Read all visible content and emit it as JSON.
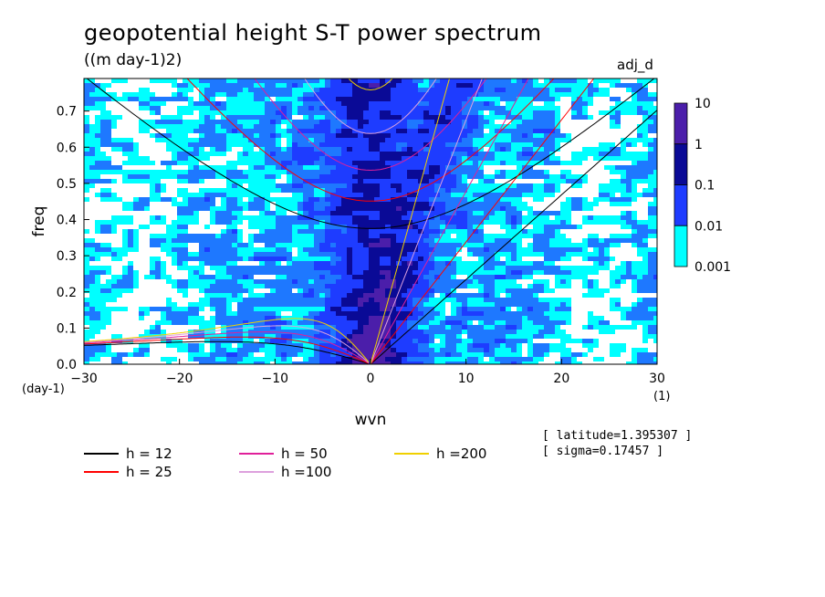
{
  "title": "geopotential height S-T power spectrum",
  "subtitle": "((m day-1)2)",
  "tag": "adj_d",
  "meta": [
    "[ latitude=1.395307 ]",
    "[ sigma=0.17457 ]"
  ],
  "legend": [
    {
      "label": "h = 12",
      "color": "#000000"
    },
    {
      "label": "h = 25",
      "color": "#ff0000"
    },
    {
      "label": "h = 50",
      "color": "#e0209a"
    },
    {
      "label": "h =100",
      "color": "#dda0dd"
    },
    {
      "label": "h =200",
      "color": "#f0d000"
    }
  ],
  "chart_data": {
    "type": "heatmap",
    "title": "geopotential height S-T power spectrum",
    "subtitle": "((m day-1)2)",
    "xlabel": "wvn",
    "xunit": "(1)",
    "ylabel": "freq",
    "yunit": "(day-1)",
    "xlim": [
      -30,
      30
    ],
    "ylim": [
      0,
      0.79
    ],
    "xticks": [
      -30,
      -20,
      -10,
      0,
      10,
      20,
      30
    ],
    "yticks": [
      0.0,
      0.1,
      0.2,
      0.3,
      0.4,
      0.5,
      0.6,
      0.7
    ],
    "colorbar": {
      "levels": [
        0.001,
        0.01,
        0.1,
        1,
        10
      ],
      "labels": [
        "0.001",
        "0.01",
        "0.1",
        "1",
        "10"
      ],
      "colors": [
        "#00ffff",
        "#1e78ff",
        "#1e3cff",
        "#0a0a96",
        "#4b1eaa"
      ]
    },
    "series": [
      {
        "name": "h = 12",
        "h": 12,
        "color": "#000000"
      },
      {
        "name": "h = 25",
        "h": 25,
        "color": "#ff0000"
      },
      {
        "name": "h = 50",
        "h": 50,
        "color": "#e0209a"
      },
      {
        "name": "h =100",
        "h": 100,
        "color": "#dda0dd"
      },
      {
        "name": "h =200",
        "h": 200,
        "color": "#f0d000"
      }
    ]
  }
}
